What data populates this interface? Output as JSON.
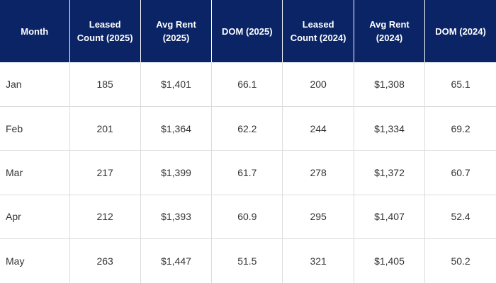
{
  "table": {
    "headers": [
      "Month",
      "Leased\nCount (2025)",
      "Avg Rent\n(2025)",
      "DOM (2025)",
      "Leased\nCount (2024)",
      "Avg Rent\n(2024)",
      "DOM (2024)"
    ],
    "rows": [
      [
        "Jan",
        "185",
        "$1,401",
        "66.1",
        "200",
        "$1,308",
        "65.1"
      ],
      [
        "Feb",
        "201",
        "$1,364",
        "62.2",
        "244",
        "$1,334",
        "69.2"
      ],
      [
        "Mar",
        "217",
        "$1,399",
        "61.7",
        "278",
        "$1,372",
        "60.7"
      ],
      [
        "Apr",
        "212",
        "$1,393",
        "60.9",
        "295",
        "$1,407",
        "52.4"
      ],
      [
        "May",
        "263",
        "$1,447",
        "51.5",
        "321",
        "$1,405",
        "50.2"
      ]
    ]
  },
  "colors": {
    "header_bg": "#0a2466",
    "header_text": "#ffffff",
    "cell_text": "#333333",
    "grid": "#dcdcdc"
  }
}
